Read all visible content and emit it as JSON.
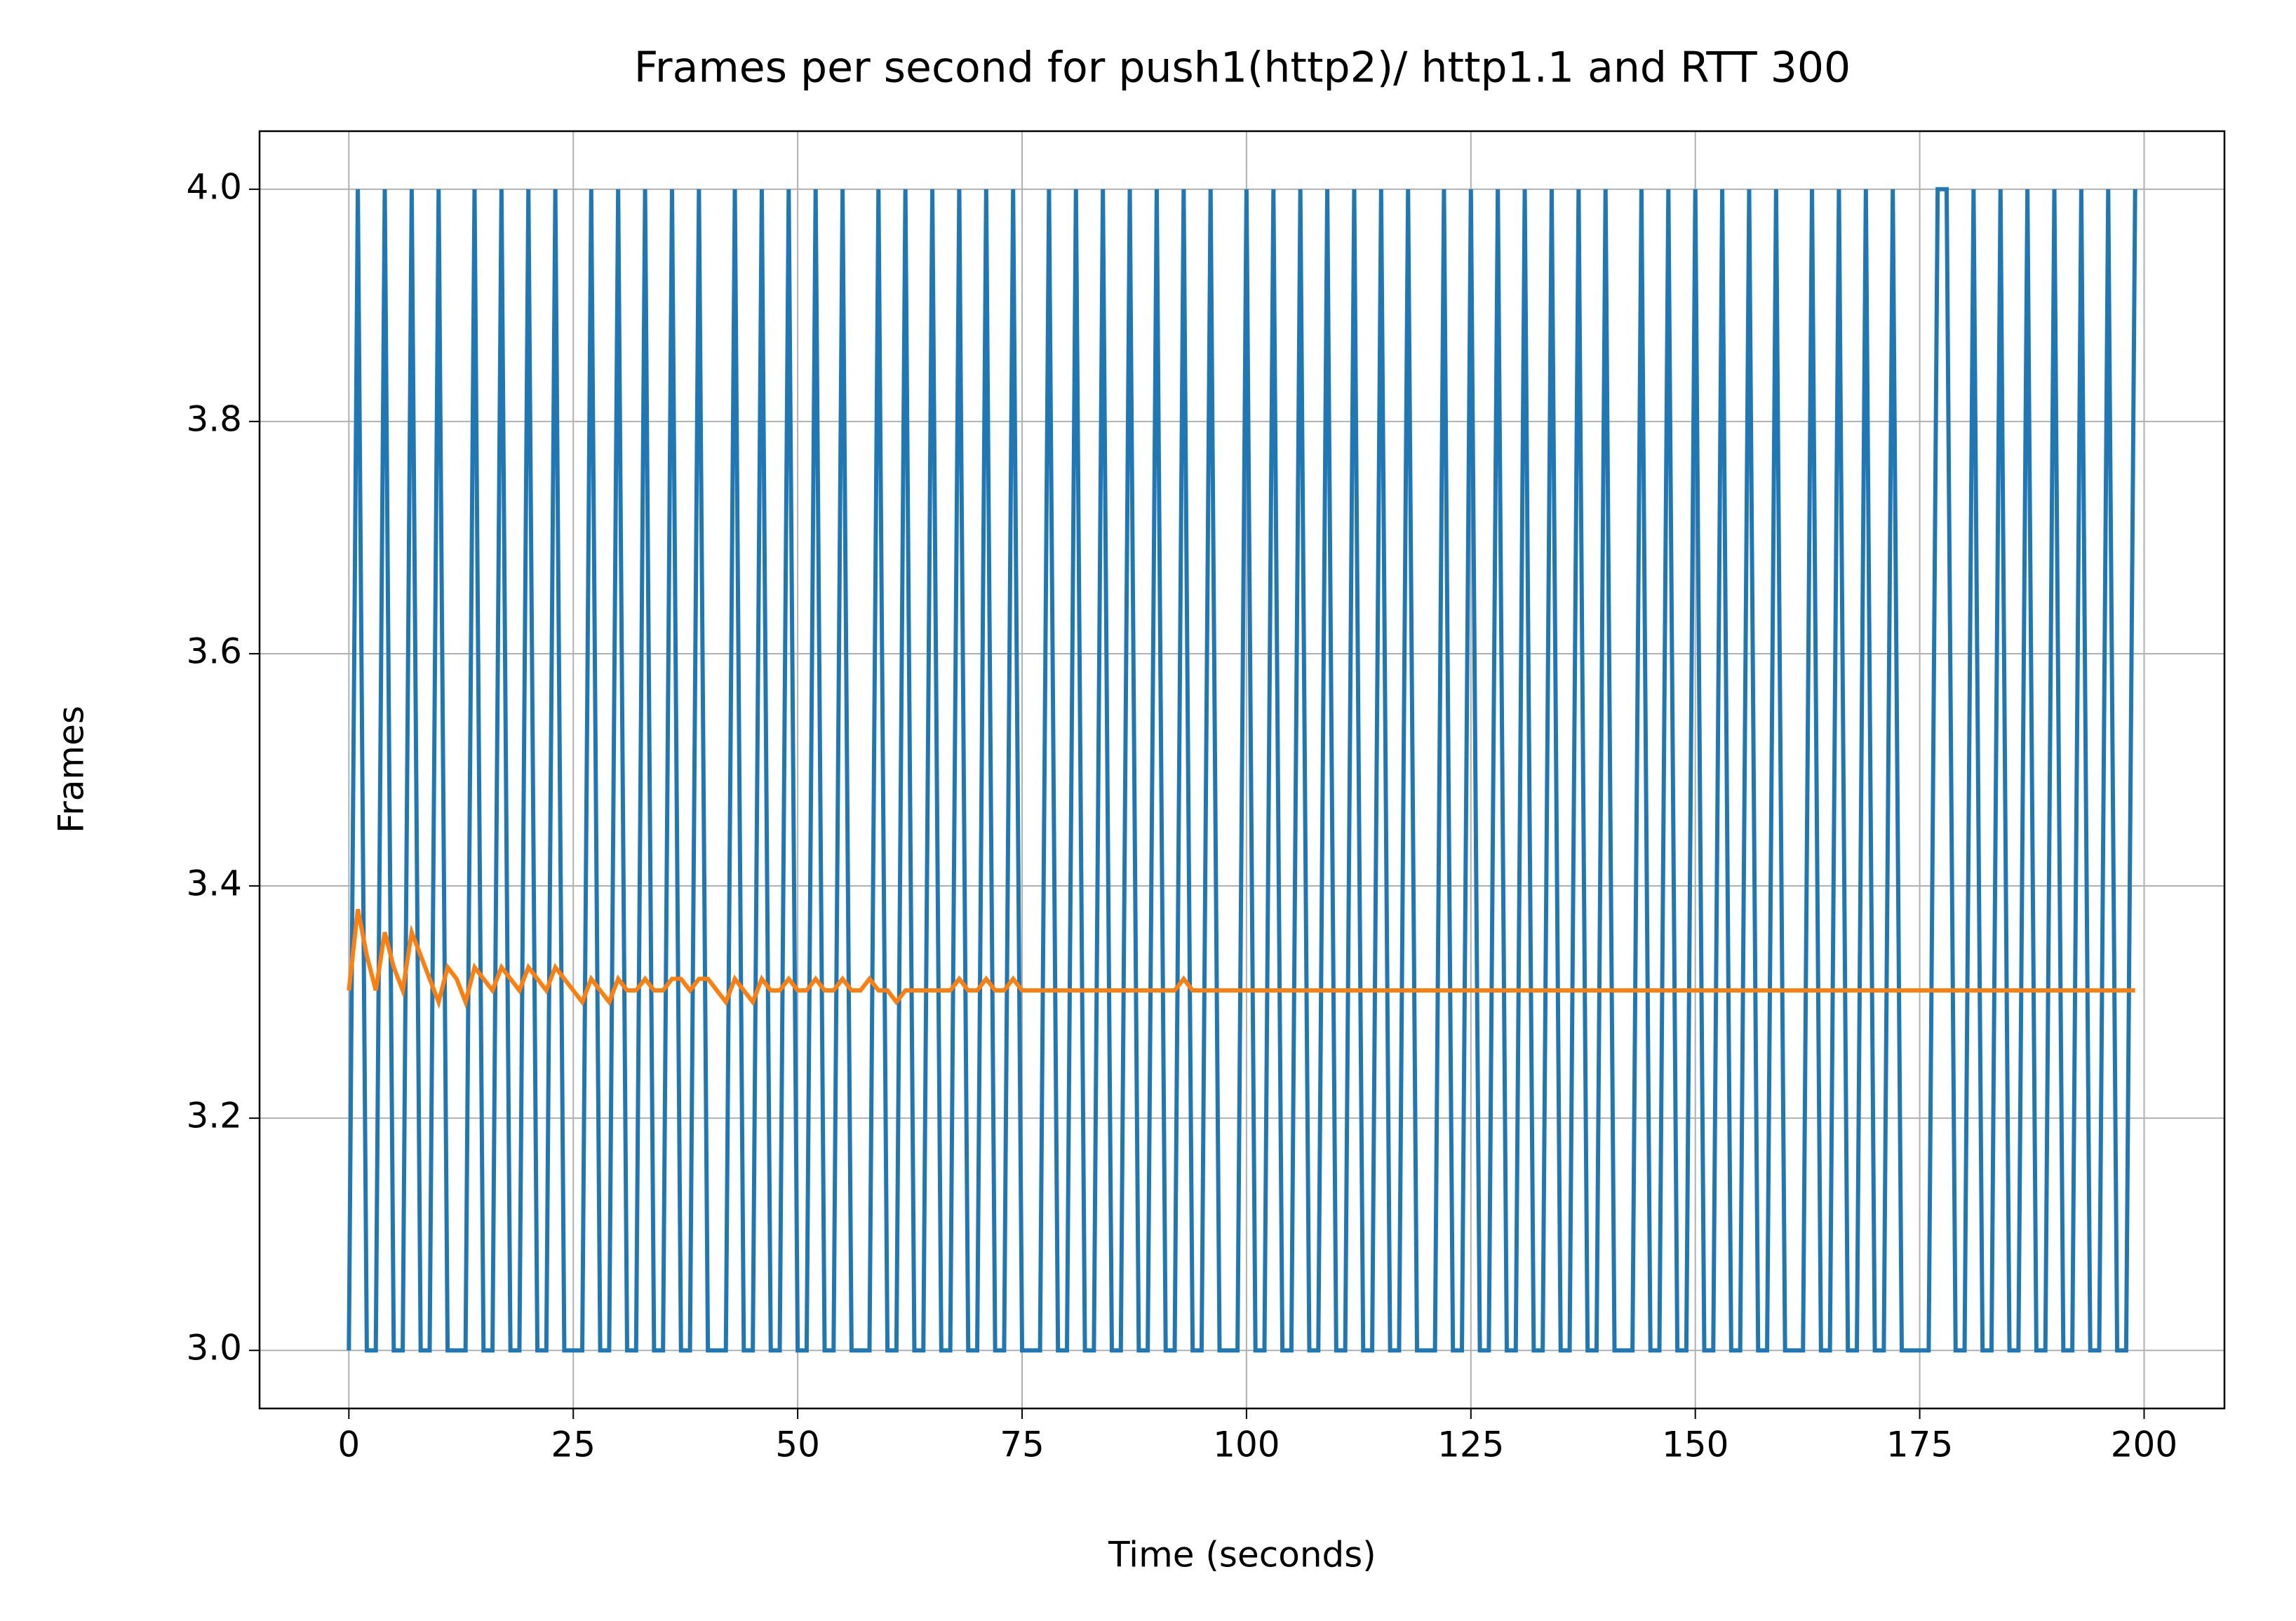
{
  "chart_data": {
    "type": "line",
    "title": "Frames per second for push1(http2)/ http1.1 and RTT 300",
    "x_label": "Time (seconds)",
    "y_label": "Frames",
    "x": [
      0,
      1,
      2,
      3,
      4,
      5,
      6,
      7,
      8,
      9,
      10,
      11,
      12,
      13,
      14,
      15,
      16,
      17,
      18,
      19,
      20,
      21,
      22,
      23,
      24,
      25,
      26,
      27,
      28,
      29,
      30,
      31,
      32,
      33,
      34,
      35,
      36,
      37,
      38,
      39,
      40,
      41,
      42,
      43,
      44,
      45,
      46,
      47,
      48,
      49,
      50,
      51,
      52,
      53,
      54,
      55,
      56,
      57,
      58,
      59,
      60,
      61,
      62,
      63,
      64,
      65,
      66,
      67,
      68,
      69,
      70,
      71,
      72,
      73,
      74,
      75,
      76,
      77,
      78,
      79,
      80,
      81,
      82,
      83,
      84,
      85,
      86,
      87,
      88,
      89,
      90,
      91,
      92,
      93,
      94,
      95,
      96,
      97,
      98,
      99,
      100,
      101,
      102,
      103,
      104,
      105,
      106,
      107,
      108,
      109,
      110,
      111,
      112,
      113,
      114,
      115,
      116,
      117,
      118,
      119,
      120,
      121,
      122,
      123,
      124,
      125,
      126,
      127,
      128,
      129,
      130,
      131,
      132,
      133,
      134,
      135,
      136,
      137,
      138,
      139,
      140,
      141,
      142,
      143,
      144,
      145,
      146,
      147,
      148,
      149,
      150,
      151,
      152,
      153,
      154,
      155,
      156,
      157,
      158,
      159,
      160,
      161,
      162,
      163,
      164,
      165,
      166,
      167,
      168,
      169,
      170,
      171,
      172,
      173,
      174,
      175,
      176,
      177,
      178,
      179,
      180,
      181,
      182,
      183,
      184,
      185,
      186,
      187,
      188,
      189,
      190,
      191,
      192,
      193,
      194,
      195,
      196,
      197,
      198,
      199
    ],
    "series": [
      {
        "color": "#1f77b4",
        "values": [
          3,
          4,
          3,
          3,
          4,
          3,
          3,
          4,
          3,
          3,
          4,
          3,
          3,
          3,
          4,
          3,
          3,
          4,
          3,
          3,
          4,
          3,
          3,
          4,
          3,
          3,
          3,
          4,
          3,
          3,
          4,
          3,
          3,
          4,
          3,
          3,
          4,
          3,
          3,
          4,
          3,
          3,
          3,
          4,
          3,
          3,
          4,
          3,
          3,
          4,
          3,
          3,
          4,
          3,
          3,
          4,
          3,
          3,
          3,
          4,
          3,
          3,
          4,
          3,
          3,
          4,
          3,
          3,
          4,
          3,
          3,
          4,
          3,
          3,
          4,
          3,
          3,
          3,
          4,
          3,
          3,
          4,
          3,
          3,
          4,
          3,
          3,
          4,
          3,
          3,
          4,
          3,
          3,
          4,
          3,
          3,
          4,
          3,
          3,
          3,
          4,
          3,
          3,
          4,
          3,
          3,
          4,
          3,
          3,
          4,
          3,
          3,
          4,
          3,
          3,
          4,
          3,
          3,
          4,
          3,
          3,
          3,
          4,
          3,
          3,
          4,
          3,
          3,
          4,
          3,
          3,
          4,
          3,
          3,
          4,
          3,
          3,
          4,
          3,
          3,
          4,
          3,
          3,
          3,
          4,
          3,
          3,
          4,
          3,
          3,
          4,
          3,
          3,
          4,
          3,
          3,
          4,
          3,
          3,
          4,
          3,
          3,
          3,
          4,
          3,
          3,
          4,
          3,
          3,
          4,
          3,
          3,
          4,
          3,
          3,
          3,
          3,
          4,
          4,
          3,
          3,
          4,
          3,
          3,
          4,
          3,
          3,
          4,
          3,
          3,
          4,
          3,
          3,
          4,
          3,
          3,
          4,
          3,
          3,
          4
        ]
      },
      {
        "color": "#ff7f0e",
        "values": [
          3.31,
          3.38,
          3.34,
          3.31,
          3.36,
          3.33,
          3.31,
          3.36,
          3.34,
          3.32,
          3.3,
          3.33,
          3.32,
          3.3,
          3.33,
          3.32,
          3.31,
          3.33,
          3.32,
          3.31,
          3.33,
          3.32,
          3.31,
          3.33,
          3.32,
          3.31,
          3.3,
          3.32,
          3.31,
          3.3,
          3.32,
          3.31,
          3.31,
          3.32,
          3.31,
          3.31,
          3.32,
          3.32,
          3.31,
          3.32,
          3.32,
          3.31,
          3.3,
          3.32,
          3.31,
          3.3,
          3.32,
          3.31,
          3.31,
          3.32,
          3.31,
          3.31,
          3.32,
          3.31,
          3.31,
          3.32,
          3.31,
          3.31,
          3.32,
          3.31,
          3.31,
          3.3,
          3.31,
          3.31,
          3.31,
          3.31,
          3.31,
          3.31,
          3.32,
          3.31,
          3.31,
          3.32,
          3.31,
          3.31,
          3.32,
          3.31,
          3.31,
          3.31,
          3.31,
          3.31,
          3.31,
          3.31,
          3.31,
          3.31,
          3.31,
          3.31,
          3.31,
          3.31,
          3.31,
          3.31,
          3.31,
          3.31,
          3.31,
          3.32,
          3.31,
          3.31,
          3.31,
          3.31,
          3.31,
          3.31,
          3.31,
          3.31,
          3.31,
          3.31,
          3.31,
          3.31,
          3.31,
          3.31,
          3.31,
          3.31,
          3.31,
          3.31,
          3.31,
          3.31,
          3.31,
          3.31,
          3.31,
          3.31,
          3.31,
          3.31,
          3.31,
          3.31,
          3.31,
          3.31,
          3.31,
          3.31,
          3.31,
          3.31,
          3.31,
          3.31,
          3.31,
          3.31,
          3.31,
          3.31,
          3.31,
          3.31,
          3.31,
          3.31,
          3.31,
          3.31,
          3.31,
          3.31,
          3.31,
          3.31,
          3.31,
          3.31,
          3.31,
          3.31,
          3.31,
          3.31,
          3.31,
          3.31,
          3.31,
          3.31,
          3.31,
          3.31,
          3.31,
          3.31,
          3.31,
          3.31,
          3.31,
          3.31,
          3.31,
          3.31,
          3.31,
          3.31,
          3.31,
          3.31,
          3.31,
          3.31,
          3.31,
          3.31,
          3.31,
          3.31,
          3.31,
          3.31,
          3.31,
          3.31,
          3.31,
          3.31,
          3.31,
          3.31,
          3.31,
          3.31,
          3.31,
          3.31,
          3.31,
          3.31,
          3.31,
          3.31,
          3.31,
          3.31,
          3.31,
          3.31,
          3.31,
          3.31,
          3.31,
          3.31,
          3.31,
          3.31
        ]
      }
    ],
    "xlim": [
      -9.95,
      208.95
    ],
    "xticks": [
      0,
      25,
      50,
      75,
      100,
      125,
      150,
      175,
      200
    ],
    "ylim": [
      2.95,
      4.05
    ],
    "yticks": [
      {
        "value": 3,
        "label": "3.0"
      },
      3.2,
      3.4,
      3.6,
      3.8,
      {
        "value": 4,
        "label": "4.0"
      }
    ],
    "grid": true
  }
}
